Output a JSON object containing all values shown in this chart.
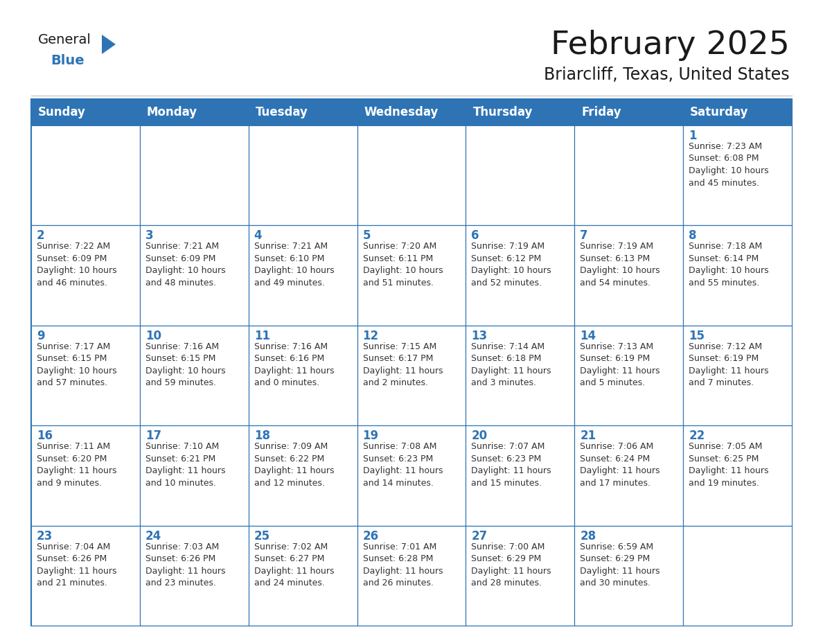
{
  "title": "February 2025",
  "subtitle": "Briarcliff, Texas, United States",
  "header_bg": "#2E74B5",
  "header_text_color": "#FFFFFF",
  "cell_border_color": "#2E74B5",
  "day_number_color": "#2E74B5",
  "cell_text_color": "#333333",
  "bg_color": "#FFFFFF",
  "logo_general_color": "#1a1a1a",
  "logo_blue_color": "#2E74B5",
  "days_of_week": [
    "Sunday",
    "Monday",
    "Tuesday",
    "Wednesday",
    "Thursday",
    "Friday",
    "Saturday"
  ],
  "title_fontsize": 34,
  "subtitle_fontsize": 17,
  "header_fontsize": 12,
  "day_num_fontsize": 12,
  "cell_fontsize": 9,
  "logo_fontsize": 14,
  "calendar": [
    [
      null,
      null,
      null,
      null,
      null,
      null,
      {
        "day": 1,
        "sunrise": "7:23 AM",
        "sunset": "6:08 PM",
        "daylight": "10 hours\nand 45 minutes."
      }
    ],
    [
      {
        "day": 2,
        "sunrise": "7:22 AM",
        "sunset": "6:09 PM",
        "daylight": "10 hours\nand 46 minutes."
      },
      {
        "day": 3,
        "sunrise": "7:21 AM",
        "sunset": "6:09 PM",
        "daylight": "10 hours\nand 48 minutes."
      },
      {
        "day": 4,
        "sunrise": "7:21 AM",
        "sunset": "6:10 PM",
        "daylight": "10 hours\nand 49 minutes."
      },
      {
        "day": 5,
        "sunrise": "7:20 AM",
        "sunset": "6:11 PM",
        "daylight": "10 hours\nand 51 minutes."
      },
      {
        "day": 6,
        "sunrise": "7:19 AM",
        "sunset": "6:12 PM",
        "daylight": "10 hours\nand 52 minutes."
      },
      {
        "day": 7,
        "sunrise": "7:19 AM",
        "sunset": "6:13 PM",
        "daylight": "10 hours\nand 54 minutes."
      },
      {
        "day": 8,
        "sunrise": "7:18 AM",
        "sunset": "6:14 PM",
        "daylight": "10 hours\nand 55 minutes."
      }
    ],
    [
      {
        "day": 9,
        "sunrise": "7:17 AM",
        "sunset": "6:15 PM",
        "daylight": "10 hours\nand 57 minutes."
      },
      {
        "day": 10,
        "sunrise": "7:16 AM",
        "sunset": "6:15 PM",
        "daylight": "10 hours\nand 59 minutes."
      },
      {
        "day": 11,
        "sunrise": "7:16 AM",
        "sunset": "6:16 PM",
        "daylight": "11 hours\nand 0 minutes."
      },
      {
        "day": 12,
        "sunrise": "7:15 AM",
        "sunset": "6:17 PM",
        "daylight": "11 hours\nand 2 minutes."
      },
      {
        "day": 13,
        "sunrise": "7:14 AM",
        "sunset": "6:18 PM",
        "daylight": "11 hours\nand 3 minutes."
      },
      {
        "day": 14,
        "sunrise": "7:13 AM",
        "sunset": "6:19 PM",
        "daylight": "11 hours\nand 5 minutes."
      },
      {
        "day": 15,
        "sunrise": "7:12 AM",
        "sunset": "6:19 PM",
        "daylight": "11 hours\nand 7 minutes."
      }
    ],
    [
      {
        "day": 16,
        "sunrise": "7:11 AM",
        "sunset": "6:20 PM",
        "daylight": "11 hours\nand 9 minutes."
      },
      {
        "day": 17,
        "sunrise": "7:10 AM",
        "sunset": "6:21 PM",
        "daylight": "11 hours\nand 10 minutes."
      },
      {
        "day": 18,
        "sunrise": "7:09 AM",
        "sunset": "6:22 PM",
        "daylight": "11 hours\nand 12 minutes."
      },
      {
        "day": 19,
        "sunrise": "7:08 AM",
        "sunset": "6:23 PM",
        "daylight": "11 hours\nand 14 minutes."
      },
      {
        "day": 20,
        "sunrise": "7:07 AM",
        "sunset": "6:23 PM",
        "daylight": "11 hours\nand 15 minutes."
      },
      {
        "day": 21,
        "sunrise": "7:06 AM",
        "sunset": "6:24 PM",
        "daylight": "11 hours\nand 17 minutes."
      },
      {
        "day": 22,
        "sunrise": "7:05 AM",
        "sunset": "6:25 PM",
        "daylight": "11 hours\nand 19 minutes."
      }
    ],
    [
      {
        "day": 23,
        "sunrise": "7:04 AM",
        "sunset": "6:26 PM",
        "daylight": "11 hours\nand 21 minutes."
      },
      {
        "day": 24,
        "sunrise": "7:03 AM",
        "sunset": "6:26 PM",
        "daylight": "11 hours\nand 23 minutes."
      },
      {
        "day": 25,
        "sunrise": "7:02 AM",
        "sunset": "6:27 PM",
        "daylight": "11 hours\nand 24 minutes."
      },
      {
        "day": 26,
        "sunrise": "7:01 AM",
        "sunset": "6:28 PM",
        "daylight": "11 hours\nand 26 minutes."
      },
      {
        "day": 27,
        "sunrise": "7:00 AM",
        "sunset": "6:29 PM",
        "daylight": "11 hours\nand 28 minutes."
      },
      {
        "day": 28,
        "sunrise": "6:59 AM",
        "sunset": "6:29 PM",
        "daylight": "11 hours\nand 30 minutes."
      },
      null
    ]
  ]
}
